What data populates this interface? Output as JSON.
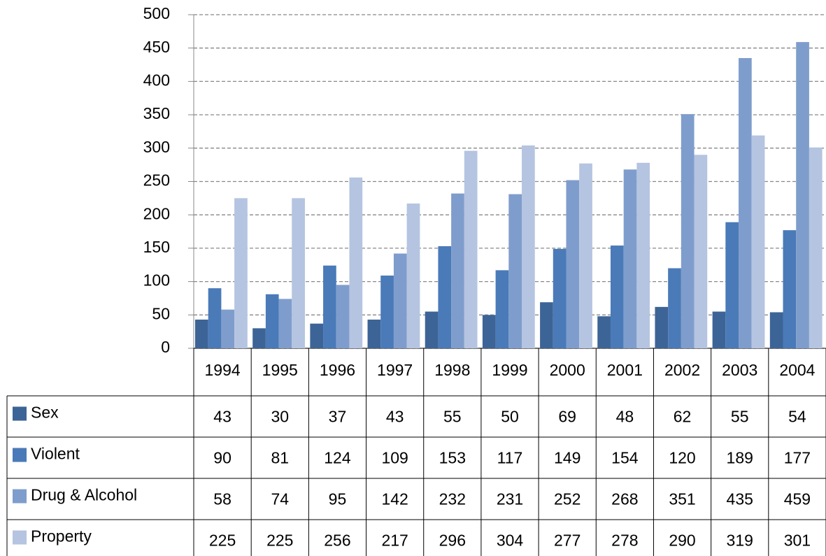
{
  "chart_data": {
    "type": "bar",
    "categories": [
      "1994",
      "1995",
      "1996",
      "1997",
      "1998",
      "1999",
      "2000",
      "2001",
      "2002",
      "2003",
      "2004"
    ],
    "series": [
      {
        "name": "Sex",
        "color": "#3d6496",
        "values": [
          43,
          30,
          37,
          43,
          55,
          50,
          69,
          48,
          62,
          55,
          54
        ]
      },
      {
        "name": "Violent",
        "color": "#4a7ab8",
        "values": [
          90,
          81,
          124,
          109,
          153,
          117,
          149,
          154,
          120,
          189,
          177
        ]
      },
      {
        "name": "Drug & Alcohol",
        "color": "#7f9dcc",
        "values": [
          58,
          74,
          95,
          142,
          232,
          231,
          252,
          268,
          351,
          435,
          459
        ]
      },
      {
        "name": "Property",
        "color": "#b5c4e0",
        "values": [
          225,
          225,
          256,
          217,
          296,
          304,
          277,
          278,
          290,
          319,
          301
        ]
      }
    ],
    "ylim": [
      0,
      500
    ],
    "yticks": [
      0,
      50,
      100,
      150,
      200,
      250,
      300,
      350,
      400,
      450,
      500
    ],
    "grid": true
  }
}
